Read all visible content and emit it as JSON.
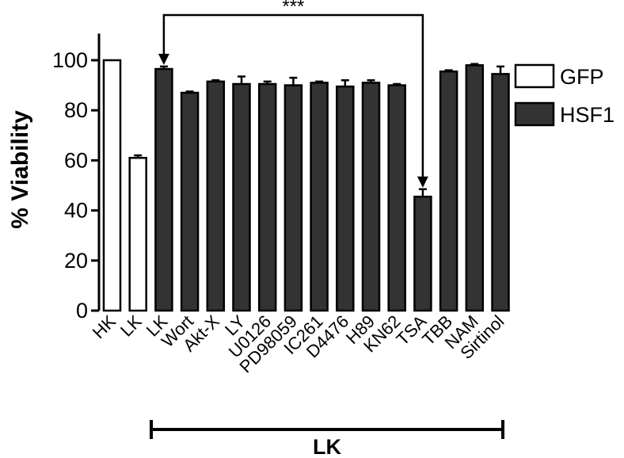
{
  "chart_data": {
    "type": "bar",
    "ylabel": "% Viability",
    "xlabel": "",
    "ylim": [
      0,
      110
    ],
    "yticks": [
      0,
      20,
      40,
      60,
      80,
      100
    ],
    "grid": false,
    "legend_position": "right",
    "categories": [
      "HK",
      "LK",
      "LK",
      "Wort",
      "Akt-X",
      "LY",
      "U0126",
      "PD98059",
      "IC261",
      "D4476",
      "H89",
      "KN62",
      "TSA",
      "TBB",
      "NAM",
      "Sirtinol"
    ],
    "series": [
      {
        "name": "GFP",
        "color": "#ffffff",
        "values": [
          100,
          61,
          null,
          null,
          null,
          null,
          null,
          null,
          null,
          null,
          null,
          null,
          null,
          null,
          null,
          null
        ],
        "errors": [
          0,
          1,
          null,
          null,
          null,
          null,
          null,
          null,
          null,
          null,
          null,
          null,
          null,
          null,
          null,
          null
        ]
      },
      {
        "name": "HSF1",
        "color": "#333333",
        "values": [
          null,
          null,
          96.5,
          87,
          91.5,
          90.5,
          90.5,
          90,
          91,
          89.5,
          91,
          90,
          45.5,
          95.5,
          98,
          94.5
        ],
        "errors": [
          null,
          null,
          1,
          0.5,
          0.5,
          3,
          1,
          3,
          0.5,
          2.5,
          1,
          0.5,
          3,
          0.5,
          0.5,
          3
        ]
      }
    ],
    "group_bracket": {
      "label": "LK",
      "from_index": 2,
      "to_index": 15
    },
    "significance": {
      "label": "***",
      "from_index": 2,
      "to_index": 12
    }
  }
}
